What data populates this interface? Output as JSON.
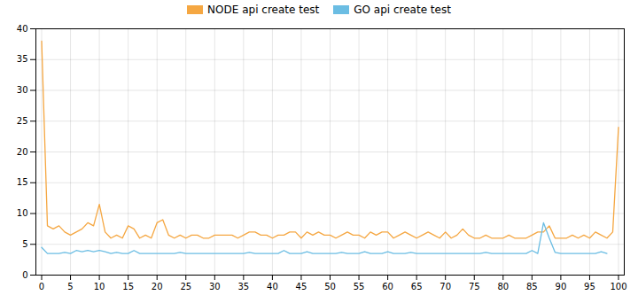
{
  "chart_data": {
    "type": "line",
    "x": [
      0,
      1,
      2,
      3,
      4,
      5,
      6,
      7,
      8,
      9,
      10,
      11,
      12,
      13,
      14,
      15,
      16,
      17,
      18,
      19,
      20,
      21,
      22,
      23,
      24,
      25,
      26,
      27,
      28,
      29,
      30,
      31,
      32,
      33,
      34,
      35,
      36,
      37,
      38,
      39,
      40,
      41,
      42,
      43,
      44,
      45,
      46,
      47,
      48,
      49,
      50,
      51,
      52,
      53,
      54,
      55,
      56,
      57,
      58,
      59,
      60,
      61,
      62,
      63,
      64,
      65,
      66,
      67,
      68,
      69,
      70,
      71,
      72,
      73,
      74,
      75,
      76,
      77,
      78,
      79,
      80,
      81,
      82,
      83,
      84,
      85,
      86,
      87,
      88,
      89,
      90,
      91,
      92,
      93,
      94,
      95,
      96,
      97,
      98,
      99,
      100
    ],
    "series": [
      {
        "name": "NODE api create test",
        "color": "#f5a742",
        "values": [
          38,
          8,
          7.5,
          8,
          7,
          6.5,
          7,
          7.5,
          8.5,
          8,
          11.5,
          7,
          6,
          6.5,
          6,
          8,
          7.5,
          6,
          6.5,
          6,
          8.5,
          9,
          6.5,
          6,
          6.5,
          6,
          6.5,
          6.5,
          6,
          6,
          6.5,
          6.5,
          6.5,
          6.5,
          6,
          6.5,
          7,
          7,
          6.5,
          6.5,
          6,
          6.5,
          6.5,
          7,
          7,
          6,
          7,
          6.5,
          7,
          6.5,
          6.5,
          6,
          6.5,
          7,
          6.5,
          6.5,
          6,
          7,
          6.5,
          7,
          7,
          6,
          6.5,
          7,
          6.5,
          6,
          6.5,
          7,
          6.5,
          6,
          7,
          6,
          6.5,
          7.5,
          6.5,
          6,
          6,
          6.5,
          6,
          6,
          6,
          6.5,
          6,
          6,
          6,
          6.5,
          7,
          7,
          8,
          6,
          6,
          6,
          6.5,
          6,
          6.5,
          6,
          7,
          6.5,
          6,
          7,
          24
        ]
      },
      {
        "name": "GO api create test",
        "color": "#6bbde3",
        "values": [
          4.5,
          3.5,
          3.5,
          3.5,
          3.7,
          3.5,
          4,
          3.8,
          4,
          3.8,
          4,
          3.8,
          3.5,
          3.7,
          3.5,
          3.5,
          4,
          3.5,
          3.5,
          3.5,
          3.5,
          3.5,
          3.5,
          3.5,
          3.7,
          3.5,
          3.5,
          3.5,
          3.5,
          3.5,
          3.5,
          3.5,
          3.5,
          3.5,
          3.5,
          3.5,
          3.7,
          3.5,
          3.5,
          3.5,
          3.5,
          3.5,
          4,
          3.5,
          3.5,
          3.5,
          3.8,
          3.5,
          3.5,
          3.5,
          3.5,
          3.5,
          3.7,
          3.5,
          3.5,
          3.5,
          3.8,
          3.5,
          3.5,
          3.5,
          3.8,
          3.5,
          3.5,
          3.5,
          3.7,
          3.5,
          3.5,
          3.5,
          3.5,
          3.5,
          3.5,
          3.5,
          3.5,
          3.5,
          3.5,
          3.5,
          3.5,
          3.7,
          3.5,
          3.5,
          3.5,
          3.5,
          3.5,
          3.5,
          3.5,
          4,
          3.5,
          8.5,
          6,
          3.7,
          3.5,
          3.5,
          3.5,
          3.5,
          3.5,
          3.5,
          3.5,
          3.8,
          3.5,
          null,
          null
        ]
      }
    ],
    "xlim": [
      -1,
      101
    ],
    "xticks": [
      0,
      5,
      10,
      15,
      20,
      25,
      30,
      35,
      40,
      45,
      50,
      55,
      60,
      65,
      70,
      75,
      80,
      85,
      90,
      95,
      100
    ],
    "ylim": [
      0,
      40
    ],
    "yticks": [
      0,
      5,
      10,
      15,
      20,
      25,
      30,
      35,
      40
    ],
    "grid": true,
    "legend": "upper center"
  }
}
